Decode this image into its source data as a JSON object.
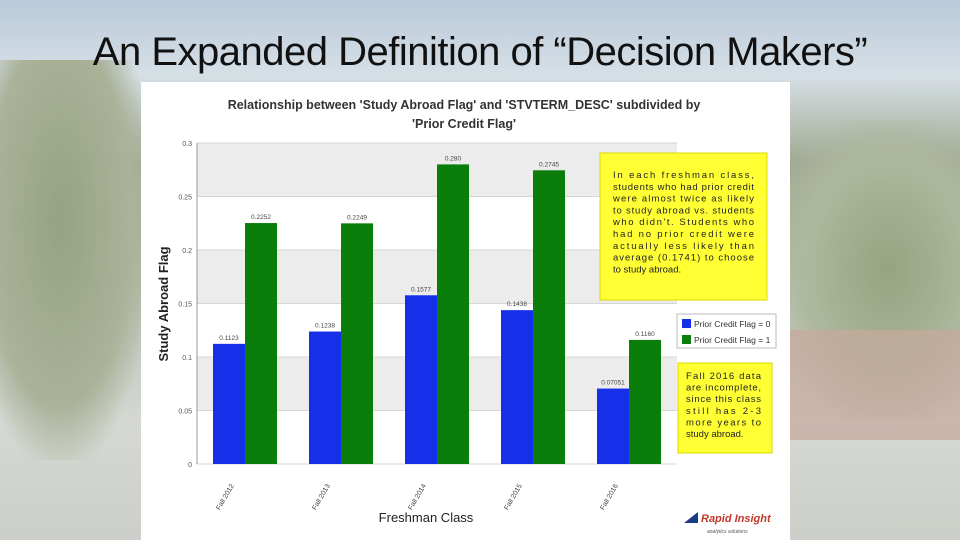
{
  "slide": {
    "title": "An Expanded Definition of “Decision Makers”"
  },
  "colors": {
    "series0": "#1530e8",
    "series1": "#0b7d0b",
    "callout": "#ffff33",
    "grid_band": "#ececec"
  },
  "annotations": {
    "callout1": [
      "In each freshman class,",
      "students who had prior credit",
      "were almost twice as likely",
      "to study abroad vs. students",
      "who didn't. Students who",
      "had no prior credit were",
      "actually less likely than",
      "average (0.1741) to choose",
      "to study abroad."
    ],
    "callout2": [
      "Fall 2016 data",
      "are incomplete,",
      "since this class",
      "still has 2-3",
      "more years to",
      "study abroad."
    ]
  },
  "logo": {
    "text": "Rapid Insight",
    "tagline": "analytics solutions"
  },
  "chart_data": {
    "type": "bar",
    "title": "Relationship between 'Study Abroad Flag' and 'STVTERM_DESC' subdivided by",
    "subtitle": "'Prior Credit Flag'",
    "xlabel": "Freshman Class",
    "ylabel": "Study Abroad Flag",
    "categories": [
      "Fall 2012",
      "Fall 2013",
      "Fall 2014",
      "Fall 2015",
      "Fall 2016"
    ],
    "series": [
      {
        "name": "Prior Credit Flag = 0",
        "values": [
          0.1123,
          0.1238,
          0.1577,
          0.1438,
          0.07051
        ],
        "labels": [
          "0.1123",
          "0.1238",
          "0.1577",
          "0.1438",
          "0.07051"
        ]
      },
      {
        "name": "Prior Credit Flag = 1",
        "values": [
          0.2252,
          0.2249,
          0.28,
          0.2745,
          0.116
        ],
        "labels": [
          "0.2252",
          "0.2249",
          "0.280",
          "0.2745",
          "0.1160"
        ]
      }
    ],
    "ylim": [
      0,
      0.3
    ],
    "yticks": [
      "0",
      "0.05",
      "0.1",
      "0.15",
      "0.2",
      "0.25",
      "0.3"
    ],
    "grid": true,
    "legend": "right"
  }
}
